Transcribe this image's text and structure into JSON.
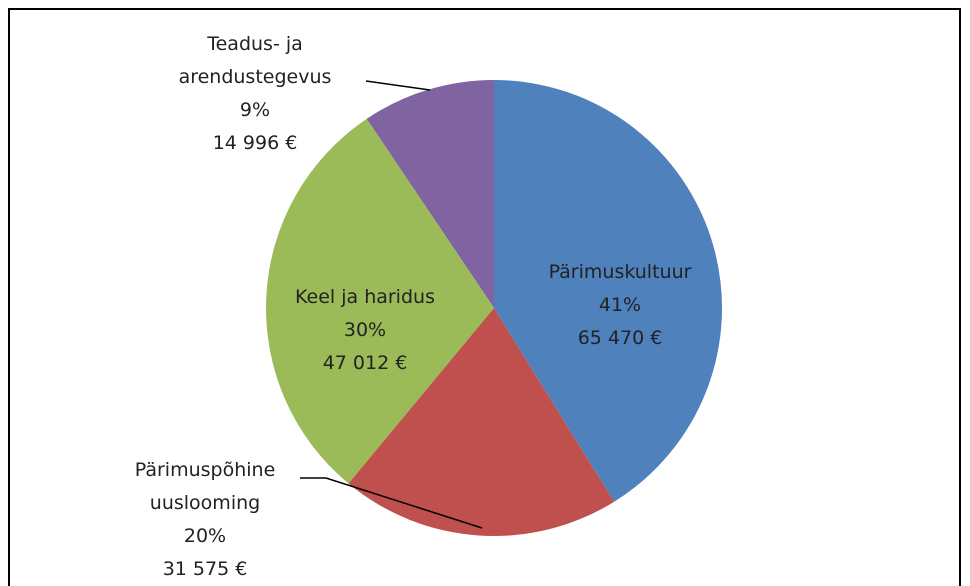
{
  "chart_data": {
    "type": "pie",
    "categories": [
      "Pärimuskultuur",
      "Pärimuspõhine uuslooming",
      "Keel ja haridus",
      "Teadus- ja arendustegevus"
    ],
    "values": [
      65470,
      31575,
      47012,
      14996
    ],
    "value_labels": [
      "65 470 €",
      "31 575 €",
      "47 012 €",
      "14 996  €"
    ],
    "percentages": [
      41,
      20,
      30,
      9
    ],
    "percentage_labels": [
      "41%",
      "20%",
      "30%",
      "9%"
    ],
    "colors": [
      "#4f81bd",
      "#c0504d",
      "#9bbb59",
      "#8064a2"
    ]
  }
}
